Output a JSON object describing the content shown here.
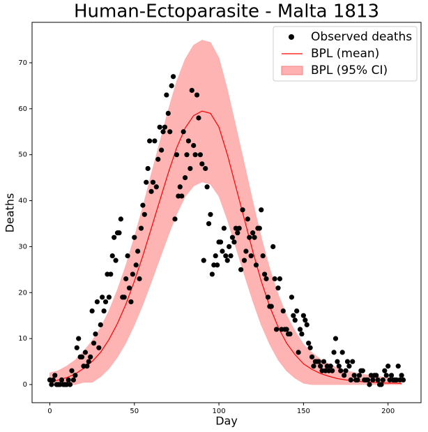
{
  "chart_data": {
    "type": "scatter",
    "title": "Human-Ectoparasite - Malta 1813",
    "xlabel": "Day",
    "ylabel": "Deaths",
    "xlim": [
      -10.5,
      219.5
    ],
    "ylim": [
      -3.95,
      78.8
    ],
    "xticks": [
      0,
      50,
      100,
      150,
      200
    ],
    "yticks": [
      0,
      10,
      20,
      30,
      40,
      50,
      60,
      70
    ],
    "legend": "upper right",
    "grid": false,
    "series": [
      {
        "name": "Observed deaths",
        "type": "scatter",
        "color": "#000000",
        "x": [
          0,
          1,
          2,
          3,
          4,
          5,
          6,
          7,
          8,
          9,
          10,
          11,
          12,
          13,
          14,
          15,
          16,
          17,
          18,
          19,
          20,
          21,
          22,
          23,
          24,
          25,
          26,
          27,
          28,
          29,
          30,
          31,
          32,
          33,
          34,
          35,
          36,
          37,
          38,
          39,
          40,
          41,
          42,
          43,
          44,
          45,
          46,
          47,
          48,
          49,
          50,
          51,
          52,
          53,
          54,
          55,
          56,
          57,
          58,
          59,
          60,
          61,
          62,
          63,
          64,
          65,
          66,
          67,
          68,
          69,
          70,
          71,
          72,
          73,
          74,
          75,
          76,
          77,
          78,
          79,
          80,
          81,
          82,
          83,
          84,
          85,
          86,
          87,
          88,
          89,
          90,
          91,
          92,
          93,
          94,
          95,
          96,
          97,
          98,
          99,
          100,
          101,
          102,
          103,
          104,
          105,
          106,
          107,
          108,
          109,
          110,
          111,
          112,
          113,
          114,
          115,
          116,
          117,
          118,
          119,
          120,
          121,
          122,
          123,
          124,
          125,
          126,
          127,
          128,
          129,
          130,
          131,
          132,
          133,
          134,
          135,
          136,
          137,
          138,
          139,
          140,
          141,
          142,
          143,
          144,
          145,
          146,
          147,
          148,
          149,
          150,
          151,
          152,
          153,
          154,
          155,
          156,
          157,
          158,
          159,
          160,
          161,
          162,
          163,
          164,
          165,
          166,
          167,
          168,
          169,
          170,
          171,
          172,
          173,
          174,
          175,
          176,
          177,
          178,
          179,
          180,
          181,
          182,
          183,
          184,
          185,
          186,
          187,
          188,
          189,
          190,
          191,
          192,
          193,
          194,
          195,
          196,
          197,
          198,
          199,
          200,
          201,
          202,
          203,
          204,
          205,
          206,
          207,
          208,
          209
        ],
        "values": [
          1,
          0,
          1,
          2,
          0,
          0,
          0,
          1,
          0,
          0,
          0,
          1,
          0,
          3,
          1,
          2,
          8,
          10,
          6,
          6,
          4,
          7,
          4,
          5,
          6,
          16,
          9,
          11,
          18,
          8,
          13,
          19,
          16,
          18,
          24,
          19,
          24,
          28,
          32,
          27,
          33,
          33,
          36,
          19,
          19,
          23,
          28,
          21,
          18,
          24,
          32,
          26,
          29,
          23,
          34,
          39,
          37,
          44,
          47,
          53,
          42,
          44,
          53,
          43,
          49,
          56,
          51,
          55,
          56,
          63,
          59,
          55,
          65,
          67,
          36,
          50,
          41,
          43,
          41,
          55,
          45,
          50,
          53,
          47,
          64,
          52,
          50,
          63,
          58,
          50,
          48,
          27,
          47,
          43,
          35,
          37,
          24,
          26,
          28,
          26,
          31,
          31,
          29,
          34,
          28,
          27,
          30,
          28,
          32,
          31,
          34,
          33,
          34,
          25,
          38,
          27,
          29,
          36,
          32,
          28,
          33,
          32,
          26,
          34,
          34,
          38,
          28,
          24,
          23,
          19,
          17,
          17,
          30,
          23,
          12,
          21,
          23,
          12,
          16,
          12,
          12,
          11,
          11,
          19,
          15,
          14,
          16,
          7,
          12,
          11,
          15,
          14,
          13,
          9,
          8,
          6,
          4,
          5,
          5,
          5,
          4,
          3,
          5,
          3,
          4,
          3,
          4,
          3,
          7,
          10,
          5,
          4,
          3,
          7,
          2,
          3,
          5,
          4,
          1,
          5,
          2,
          1,
          1,
          2,
          3,
          3,
          1,
          1,
          1,
          0,
          2,
          1,
          2,
          2,
          1,
          0,
          0,
          1,
          3,
          2,
          4,
          1,
          2,
          1,
          1,
          1,
          4,
          1,
          2,
          1
        ]
      },
      {
        "name": "BPL (mean)",
        "type": "line",
        "color": "#ff0000",
        "x": [
          0,
          5,
          10,
          15,
          20,
          25,
          30,
          35,
          40,
          45,
          50,
          55,
          60,
          65,
          70,
          75,
          80,
          85,
          90,
          95,
          100,
          105,
          110,
          115,
          120,
          125,
          130,
          135,
          140,
          145,
          150,
          155,
          160,
          165,
          170,
          175,
          180,
          185,
          190,
          195,
          200,
          205,
          208
        ],
        "values": [
          0.5,
          1,
          1.5,
          2.3,
          3.5,
          5,
          7,
          9.8,
          13.3,
          17.5,
          22.5,
          28,
          34,
          40,
          46,
          51.5,
          55.8,
          58.5,
          59.5,
          59,
          56,
          50,
          43,
          36,
          29,
          22.5,
          17,
          12.5,
          9,
          6.5,
          4.5,
          3.3,
          2.4,
          1.8,
          1.3,
          1,
          0.8,
          0.6,
          0.5,
          0.4,
          0.3,
          0.3,
          0.2
        ]
      },
      {
        "name": "BPL (95% CI)",
        "type": "band",
        "color": "#ffb0b0",
        "x": [
          0,
          5,
          10,
          15,
          20,
          25,
          30,
          35,
          40,
          45,
          50,
          55,
          60,
          65,
          70,
          75,
          80,
          85,
          90,
          95,
          100,
          105,
          110,
          115,
          120,
          125,
          130,
          135,
          140,
          145,
          150,
          155,
          160,
          165,
          170,
          175,
          180,
          185,
          190,
          195,
          200,
          205,
          208
        ],
        "lower": [
          0,
          0,
          0,
          0,
          0.5,
          0.5,
          1.7,
          3.5,
          6,
          9.1,
          13,
          17.4,
          22.3,
          27.4,
          32.4,
          37.1,
          40.9,
          43.2,
          44.1,
          43.6,
          41,
          35.9,
          29.9,
          24,
          18.2,
          13,
          8.8,
          5.4,
          3,
          1.4,
          0.3,
          0,
          0,
          0,
          0,
          0,
          0,
          0,
          0,
          0,
          0,
          0,
          0
        ],
        "upper": [
          2.5,
          3,
          4,
          5.3,
          7.2,
          9.5,
          12.3,
          16,
          20.6,
          25.9,
          32,
          38.6,
          45.7,
          52.6,
          59.6,
          65.9,
          70.7,
          73.8,
          74.9,
          74.4,
          71,
          64.1,
          56.1,
          48,
          39.8,
          32,
          25.2,
          19.6,
          15,
          11.6,
          8.7,
          6.9,
          5.5,
          4.5,
          3.6,
          3,
          2.6,
          2.2,
          2,
          1.7,
          1.4,
          1.4,
          1.1
        ]
      }
    ]
  }
}
